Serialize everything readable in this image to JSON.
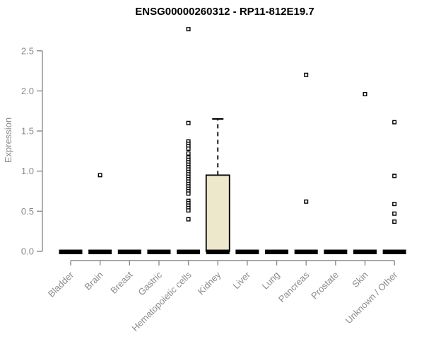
{
  "window": {
    "background": "#ffffff"
  },
  "chart_data": {
    "type": "boxplot",
    "title": "ENSG00000260312 - RP11-812E19.7",
    "ylabel": "Expression",
    "xlabel": "",
    "ylim": [
      0,
      2.85
    ],
    "yticks": [
      "0.0",
      "0.5",
      "1.0",
      "1.5",
      "2.0",
      "2.5"
    ],
    "grid": false,
    "legend": "none",
    "categories": [
      "Bladder",
      "Brain",
      "Breast",
      "Gastric",
      "Hematopoietic cells",
      "Kidney",
      "Liver",
      "Lung",
      "Pancreas",
      "Prostate",
      "Skin",
      "Unknown / Other"
    ],
    "boxes": [
      {
        "category": "Bladder",
        "q1": 0,
        "median": 0,
        "q3": 0,
        "whisker_low": 0,
        "whisker_high": 0,
        "outliers": []
      },
      {
        "category": "Brain",
        "q1": 0,
        "median": 0,
        "q3": 0,
        "whisker_low": 0,
        "whisker_high": 0,
        "outliers": [
          0.95
        ]
      },
      {
        "category": "Breast",
        "q1": 0,
        "median": 0,
        "q3": 0,
        "whisker_low": 0,
        "whisker_high": 0,
        "outliers": []
      },
      {
        "category": "Gastric",
        "q1": 0,
        "median": 0,
        "q3": 0,
        "whisker_low": 0,
        "whisker_high": 0,
        "outliers": []
      },
      {
        "category": "Hematopoietic cells",
        "q1": 0,
        "median": 0,
        "q3": 0,
        "whisker_low": 0,
        "whisker_high": 0,
        "outliers": [
          2.77,
          1.6,
          1.37,
          1.34,
          1.31,
          1.28,
          1.22,
          1.17,
          1.14,
          1.11,
          1.08,
          1.05,
          1.02,
          0.99,
          0.96,
          0.93,
          0.9,
          0.87,
          0.84,
          0.81,
          0.78,
          0.75,
          0.72,
          0.63,
          0.6,
          0.57,
          0.54,
          0.51,
          0.4
        ]
      },
      {
        "category": "Kidney",
        "q1": 0,
        "median": 0,
        "q3": 0.95,
        "whisker_low": 0,
        "whisker_high": 1.65,
        "outliers": []
      },
      {
        "category": "Liver",
        "q1": 0,
        "median": 0,
        "q3": 0,
        "whisker_low": 0,
        "whisker_high": 0,
        "outliers": []
      },
      {
        "category": "Lung",
        "q1": 0,
        "median": 0,
        "q3": 0,
        "whisker_low": 0,
        "whisker_high": 0,
        "outliers": []
      },
      {
        "category": "Pancreas",
        "q1": 0,
        "median": 0,
        "q3": 0,
        "whisker_low": 0,
        "whisker_high": 0,
        "outliers": [
          2.2,
          0.62
        ]
      },
      {
        "category": "Prostate",
        "q1": 0,
        "median": 0,
        "q3": 0,
        "whisker_low": 0,
        "whisker_high": 0,
        "outliers": []
      },
      {
        "category": "Skin",
        "q1": 0,
        "median": 0,
        "q3": 0,
        "whisker_low": 0,
        "whisker_high": 0,
        "outliers": [
          1.96
        ]
      },
      {
        "category": "Unknown / Other",
        "q1": 0,
        "median": 0,
        "q3": 0,
        "whisker_low": 0,
        "whisker_high": 0,
        "outliers": [
          1.61,
          0.94,
          0.59,
          0.47,
          0.37
        ]
      }
    ],
    "colors": {
      "axis": "#8b8b8b",
      "tick_text": "#8b8b8b",
      "title_text": "#000000",
      "box_fill": "#ede7cb",
      "box_stroke": "#000000",
      "median_bar": "#000000",
      "outlier_stroke": "#000000",
      "outlier_fill": "#ffffff",
      "background": "#ffffff"
    }
  }
}
